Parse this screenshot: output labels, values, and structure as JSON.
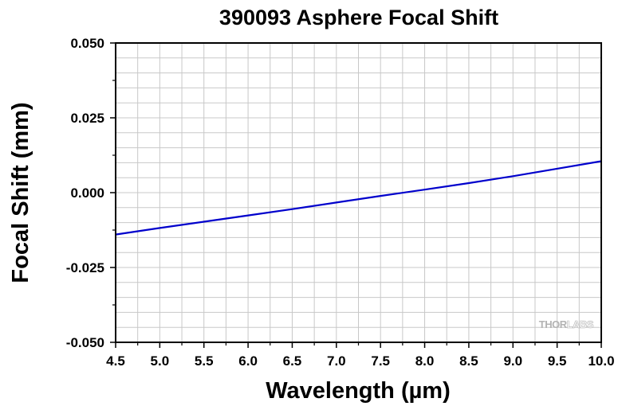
{
  "chart_data": {
    "type": "line",
    "title": "390093 Asphere Focal Shift",
    "xlabel": "Wavelength (µm)",
    "ylabel": "Focal Shift (mm)",
    "xlim": [
      4.5,
      10.0
    ],
    "ylim": [
      -0.05,
      0.05
    ],
    "grid": true,
    "xticks": [
      4.5,
      5.0,
      5.5,
      6.0,
      6.5,
      7.0,
      7.5,
      8.0,
      8.5,
      9.0,
      9.5,
      10.0
    ],
    "xtick_labels": [
      "4.5",
      "5.0",
      "5.5",
      "6.0",
      "6.5",
      "7.0",
      "7.5",
      "8.0",
      "8.5",
      "9.0",
      "9.5",
      "10.0"
    ],
    "yticks": [
      -0.05,
      -0.025,
      0.0,
      0.025,
      0.05
    ],
    "ytick_labels": [
      "-0.050",
      "-0.025",
      "0.000",
      "0.025",
      "0.050"
    ],
    "series": [
      {
        "color": "#0000cc",
        "x": [
          4.5,
          5.0,
          5.5,
          6.0,
          6.5,
          7.0,
          7.5,
          8.0,
          8.5,
          9.0,
          9.5,
          10.0
        ],
        "y": [
          -0.014,
          -0.0118,
          -0.0097,
          -0.0076,
          -0.0055,
          -0.0033,
          -0.0011,
          0.001,
          0.0032,
          0.0055,
          0.008,
          0.0105
        ]
      }
    ]
  },
  "watermark": {
    "part1": "THOR",
    "part2": "LABS"
  }
}
